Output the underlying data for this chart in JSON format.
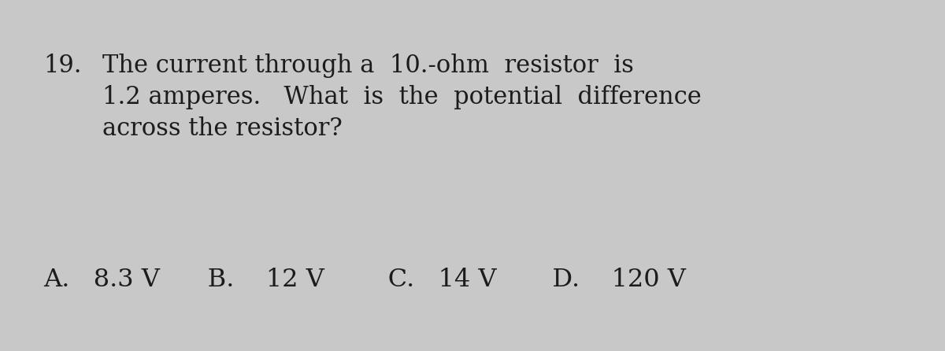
{
  "background_color": "#c8c8c8",
  "number": "19.",
  "line1": "The current through a  10.-ohm  resistor  is",
  "line2": "1.2 amperes.   What  is  the  potential  difference",
  "line3": "across the resistor?",
  "answers": "A.   8.3 V      B.    12 V        C.   14 V       D.    120 V",
  "text_color": "#1c1c1c",
  "font_size_question": 22,
  "font_size_answers": 23
}
